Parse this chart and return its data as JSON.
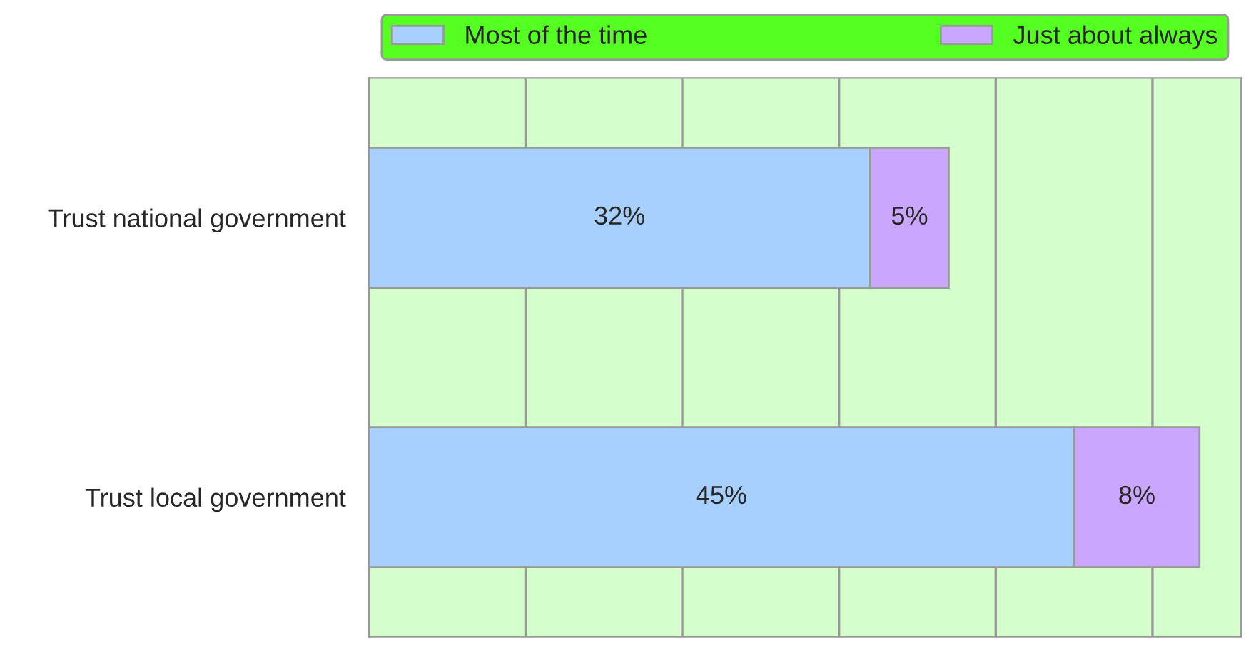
{
  "chart_data": {
    "type": "bar",
    "orientation": "horizontal",
    "stacked": true,
    "categories": [
      "Trust national government",
      "Trust local government"
    ],
    "series": [
      {
        "name": "Most of the time",
        "color": "#a8d0ff",
        "values": [
          32,
          45
        ],
        "value_labels": [
          "32%",
          "45%"
        ]
      },
      {
        "name": "Just about always",
        "color": "#cba6ff",
        "values": [
          5,
          8
        ],
        "value_labels": [
          "5%",
          "8%"
        ]
      }
    ],
    "tick_labels": "y",
    "grid": "x",
    "legend": "top"
  }
}
